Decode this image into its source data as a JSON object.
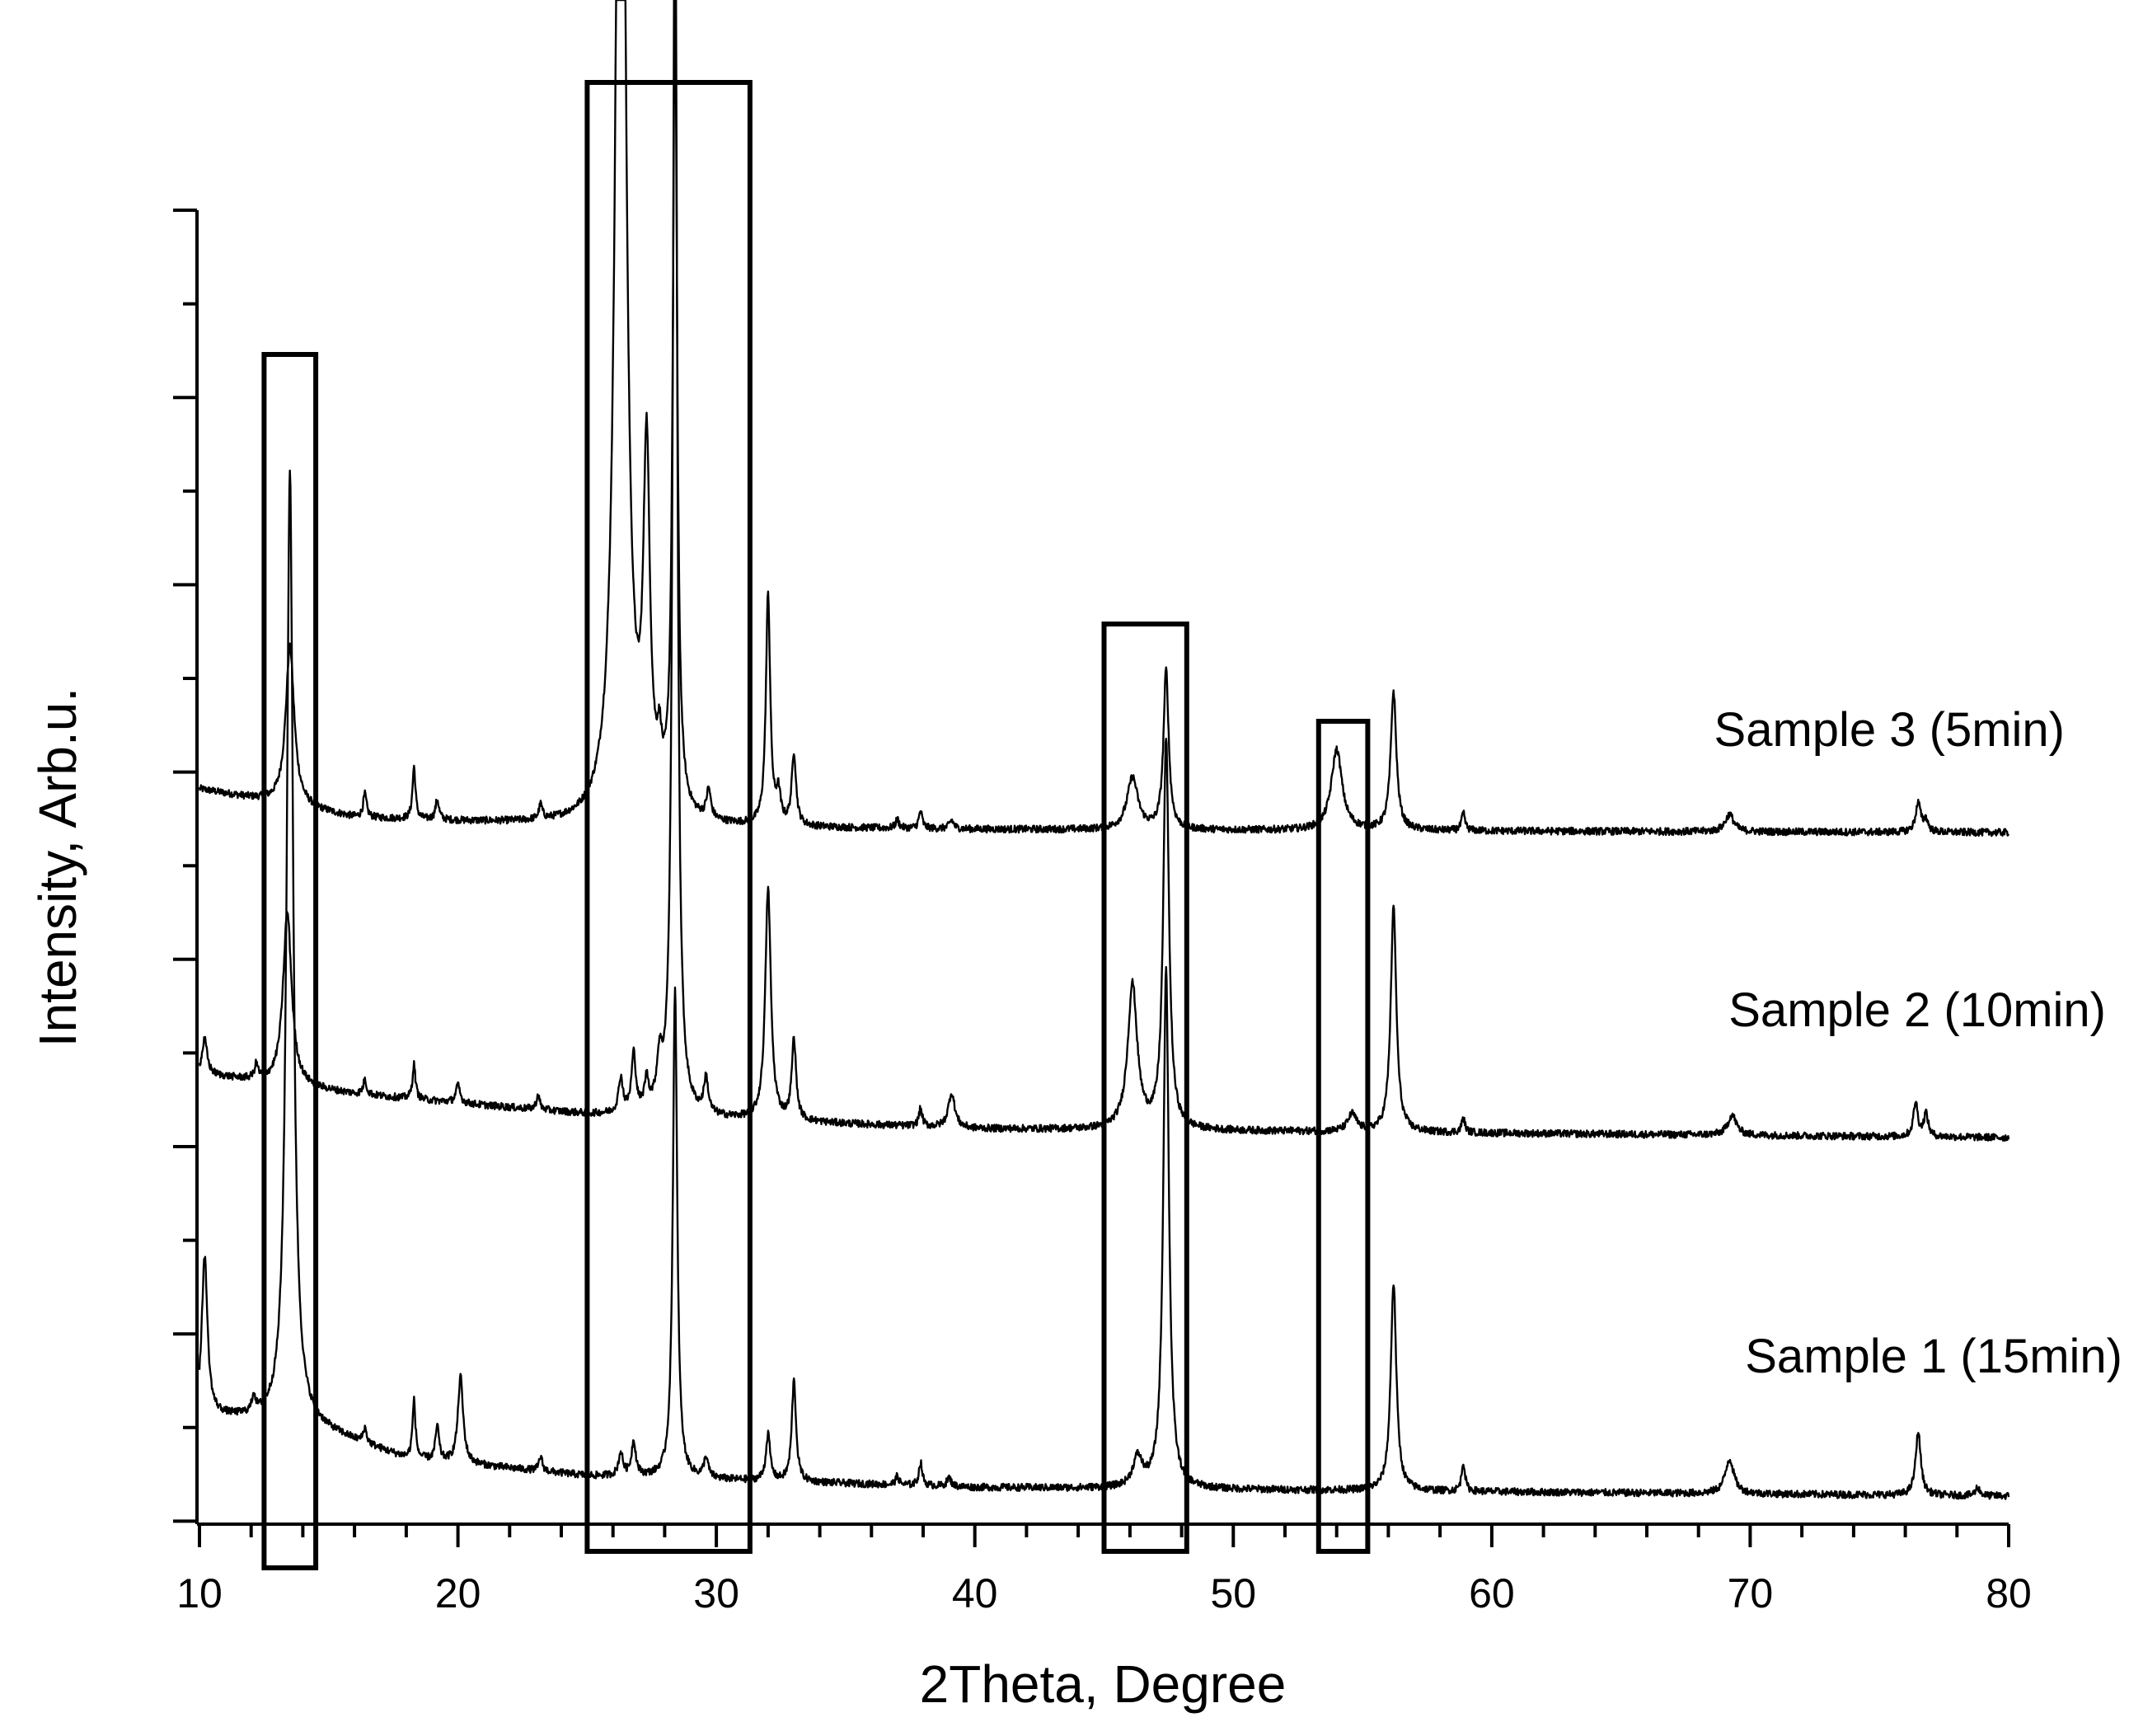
{
  "chart_data": {
    "type": "line",
    "title": "",
    "xlabel": "2Theta, Degree",
    "ylabel": "Intensity, Arb.u.",
    "xlim": [
      10,
      80
    ],
    "x_ticks": [
      10,
      20,
      30,
      40,
      50,
      60,
      70,
      80
    ],
    "y_tick_labels": "none",
    "grid": false,
    "legend": "inline labels at right end of each trace",
    "series": [
      {
        "name": "Sample 3 (5min)",
        "offset": 2.2,
        "baseline": [
          [
            10,
            0.15
          ],
          [
            16,
            0.05
          ],
          [
            25,
            0.02
          ],
          [
            40,
            0.01
          ],
          [
            80,
            0.0
          ]
        ],
        "peaks": [
          {
            "x": 13.5,
            "h": 0.55,
            "w": 0.2
          },
          {
            "x": 16.4,
            "h": 0.08,
            "w": 0.08
          },
          {
            "x": 18.3,
            "h": 0.18,
            "w": 0.07
          },
          {
            "x": 19.2,
            "h": 0.07,
            "w": 0.08
          },
          {
            "x": 23.2,
            "h": 0.05,
            "w": 0.08
          },
          {
            "x": 26.3,
            "h": 5.2,
            "w": 0.2
          },
          {
            "x": 27.3,
            "h": 1.2,
            "w": 0.15
          },
          {
            "x": 27.8,
            "h": 0.15,
            "w": 0.1
          },
          {
            "x": 28.4,
            "h": 2.8,
            "w": 0.1
          },
          {
            "x": 29.7,
            "h": 0.1,
            "w": 0.1
          },
          {
            "x": 32.0,
            "h": 0.8,
            "w": 0.1
          },
          {
            "x": 32.4,
            "h": 0.1,
            "w": 0.1
          },
          {
            "x": 33.0,
            "h": 0.25,
            "w": 0.1
          },
          {
            "x": 37.0,
            "h": 0.03,
            "w": 0.08
          },
          {
            "x": 37.9,
            "h": 0.06,
            "w": 0.08
          },
          {
            "x": 39.1,
            "h": 0.03,
            "w": 0.1
          },
          {
            "x": 46.1,
            "h": 0.18,
            "w": 0.25
          },
          {
            "x": 47.4,
            "h": 0.55,
            "w": 0.12
          },
          {
            "x": 54.0,
            "h": 0.28,
            "w": 0.25
          },
          {
            "x": 56.2,
            "h": 0.48,
            "w": 0.13
          },
          {
            "x": 58.9,
            "h": 0.06,
            "w": 0.08
          },
          {
            "x": 69.2,
            "h": 0.06,
            "w": 0.2
          },
          {
            "x": 76.5,
            "h": 0.1,
            "w": 0.12
          },
          {
            "x": 76.8,
            "h": 0.04,
            "w": 0.1
          }
        ]
      },
      {
        "name": "Sample 2 (10min)",
        "offset": 1.1,
        "baseline": [
          [
            10,
            0.22
          ],
          [
            16,
            0.15
          ],
          [
            25,
            0.08
          ],
          [
            40,
            0.03
          ],
          [
            80,
            0.0
          ]
        ],
        "peaks": [
          {
            "x": 10.2,
            "h": 0.12,
            "w": 0.12
          },
          {
            "x": 12.2,
            "h": 0.05,
            "w": 0.08
          },
          {
            "x": 13.4,
            "h": 0.6,
            "w": 0.2
          },
          {
            "x": 16.4,
            "h": 0.05,
            "w": 0.08
          },
          {
            "x": 18.3,
            "h": 0.12,
            "w": 0.07
          },
          {
            "x": 20.0,
            "h": 0.06,
            "w": 0.1
          },
          {
            "x": 23.1,
            "h": 0.05,
            "w": 0.08
          },
          {
            "x": 26.3,
            "h": 0.12,
            "w": 0.1
          },
          {
            "x": 26.8,
            "h": 0.2,
            "w": 0.1
          },
          {
            "x": 27.3,
            "h": 0.1,
            "w": 0.1
          },
          {
            "x": 27.8,
            "h": 0.15,
            "w": 0.12
          },
          {
            "x": 28.4,
            "h": 4.5,
            "w": 0.1
          },
          {
            "x": 29.6,
            "h": 0.12,
            "w": 0.1
          },
          {
            "x": 32.0,
            "h": 0.8,
            "w": 0.13
          },
          {
            "x": 33.0,
            "h": 0.28,
            "w": 0.1
          },
          {
            "x": 37.9,
            "h": 0.06,
            "w": 0.08
          },
          {
            "x": 39.1,
            "h": 0.12,
            "w": 0.15
          },
          {
            "x": 46.1,
            "h": 0.5,
            "w": 0.22
          },
          {
            "x": 47.4,
            "h": 1.35,
            "w": 0.13
          },
          {
            "x": 54.6,
            "h": 0.06,
            "w": 0.2
          },
          {
            "x": 56.2,
            "h": 0.78,
            "w": 0.13
          },
          {
            "x": 58.9,
            "h": 0.05,
            "w": 0.08
          },
          {
            "x": 69.3,
            "h": 0.07,
            "w": 0.2
          },
          {
            "x": 76.4,
            "h": 0.12,
            "w": 0.1
          },
          {
            "x": 76.8,
            "h": 0.08,
            "w": 0.1
          }
        ]
      },
      {
        "name": "Sample 1 (15min)",
        "offset": 0.0,
        "baseline": [
          [
            10,
            0.28
          ],
          [
            14,
            0.25
          ],
          [
            18,
            0.13
          ],
          [
            25,
            0.07
          ],
          [
            40,
            0.03
          ],
          [
            80,
            0.0
          ]
        ],
        "peaks": [
          {
            "x": 10.2,
            "h": 0.55,
            "w": 0.13
          },
          {
            "x": 12.1,
            "h": 0.06,
            "w": 0.08
          },
          {
            "x": 13.5,
            "h": 3.3,
            "w": 0.15
          },
          {
            "x": 16.4,
            "h": 0.05,
            "w": 0.08
          },
          {
            "x": 18.3,
            "h": 0.2,
            "w": 0.07
          },
          {
            "x": 19.2,
            "h": 0.12,
            "w": 0.08
          },
          {
            "x": 20.1,
            "h": 0.3,
            "w": 0.12
          },
          {
            "x": 23.2,
            "h": 0.05,
            "w": 0.08
          },
          {
            "x": 26.3,
            "h": 0.08,
            "w": 0.1
          },
          {
            "x": 26.8,
            "h": 0.12,
            "w": 0.1
          },
          {
            "x": 28.4,
            "h": 1.7,
            "w": 0.1
          },
          {
            "x": 29.6,
            "h": 0.07,
            "w": 0.1
          },
          {
            "x": 32.0,
            "h": 0.16,
            "w": 0.1
          },
          {
            "x": 33.0,
            "h": 0.35,
            "w": 0.1
          },
          {
            "x": 37.0,
            "h": 0.03,
            "w": 0.08
          },
          {
            "x": 37.9,
            "h": 0.08,
            "w": 0.08
          },
          {
            "x": 39.0,
            "h": 0.03,
            "w": 0.1
          },
          {
            "x": 46.3,
            "h": 0.1,
            "w": 0.22
          },
          {
            "x": 47.4,
            "h": 1.8,
            "w": 0.13
          },
          {
            "x": 56.2,
            "h": 0.72,
            "w": 0.13
          },
          {
            "x": 58.9,
            "h": 0.1,
            "w": 0.08
          },
          {
            "x": 69.2,
            "h": 0.12,
            "w": 0.2
          },
          {
            "x": 76.5,
            "h": 0.22,
            "w": 0.12
          },
          {
            "x": 78.8,
            "h": 0.03,
            "w": 0.1
          }
        ]
      }
    ],
    "highlight_regions": [
      {
        "x_start": 12.5,
        "x_end": 14.5
      },
      {
        "x_start": 25.0,
        "x_end": 31.3
      },
      {
        "x_start": 45.0,
        "x_end": 48.2
      },
      {
        "x_start": 53.3,
        "x_end": 55.2
      }
    ]
  }
}
